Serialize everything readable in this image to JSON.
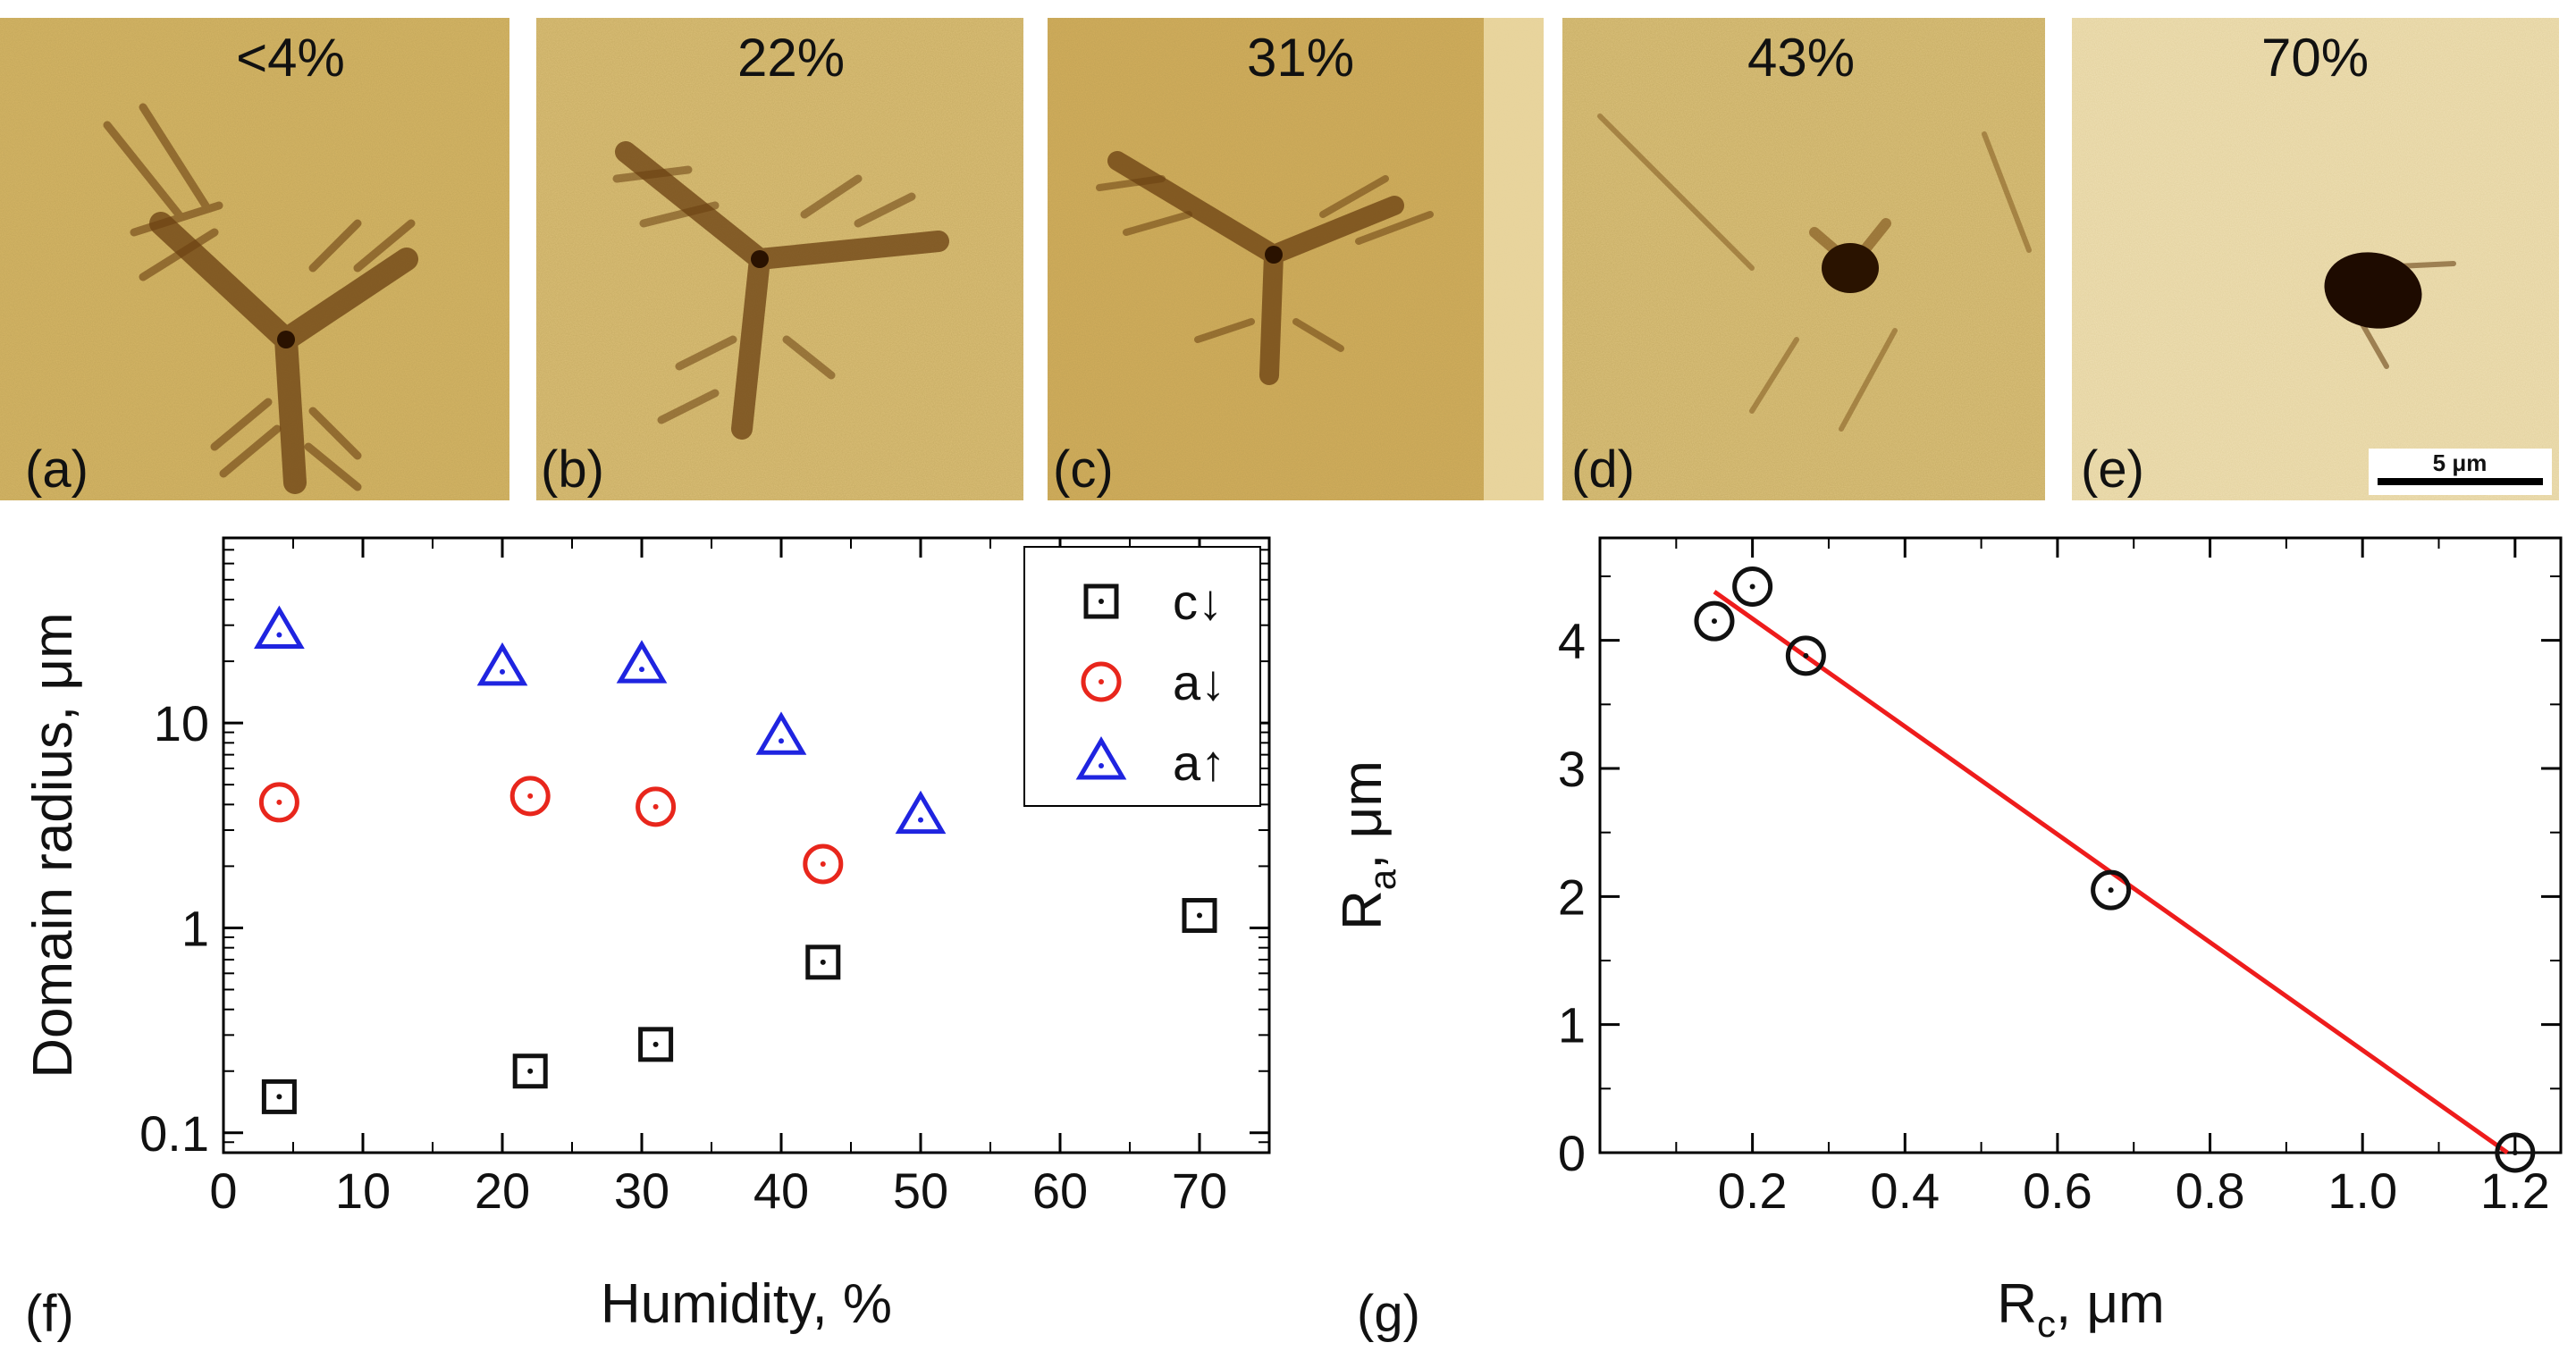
{
  "micrographs": [
    {
      "letter": "(a)",
      "humidity": "<4%",
      "feature": "feathered three-armed domain, large"
    },
    {
      "letter": "(b)",
      "humidity": "22%",
      "feature": "feathered three-armed domain"
    },
    {
      "letter": "(c)",
      "humidity": "31%",
      "feature": "feathered three-armed domain"
    },
    {
      "letter": "(d)",
      "humidity": "43%",
      "feature": "small domain with few lines"
    },
    {
      "letter": "(e)",
      "humidity": "70%",
      "feature": "dark elliptical domain"
    }
  ],
  "scale_bar": {
    "label": "5 μm"
  },
  "chart_data": [
    {
      "panel": "(f)",
      "type": "scatter",
      "xlabel": "Humidity, %",
      "ylabel": "Domain radius, μm",
      "yscale": "log",
      "xlim": [
        0,
        75
      ],
      "ylim": [
        0.08,
        80
      ],
      "xticks": [
        "0",
        "10",
        "20",
        "30",
        "40",
        "50",
        "60",
        "70"
      ],
      "yticks": [
        "0.1",
        "1",
        "10"
      ],
      "legend_position": "top-right",
      "series": [
        {
          "name": "c↓",
          "marker": "square",
          "color": "#111111",
          "x": [
            4,
            22,
            31,
            43,
            70
          ],
          "y": [
            0.15,
            0.2,
            0.27,
            0.68,
            1.15
          ]
        },
        {
          "name": "a↓",
          "marker": "circle",
          "color": "#e8261c",
          "x": [
            4,
            22,
            31,
            43
          ],
          "y": [
            4.1,
            4.4,
            3.9,
            2.05
          ]
        },
        {
          "name": "a↑",
          "marker": "triangle",
          "color": "#1f24e0",
          "x": [
            4,
            20,
            30,
            40,
            50
          ],
          "y": [
            28,
            18.5,
            19,
            8.5,
            3.5
          ]
        }
      ]
    },
    {
      "panel": "(g)",
      "type": "scatter",
      "xlabel_main": "R",
      "xlabel_sub": "c",
      "xlabel_unit": ", μm",
      "ylabel_main": "R",
      "ylabel_sub": "a",
      "ylabel_unit": ", μm",
      "xlim": [
        0,
        1.26
      ],
      "ylim": [
        0,
        4.8
      ],
      "xticks": [
        "0.2",
        "0.4",
        "0.6",
        "0.8",
        "1.0",
        "1.2"
      ],
      "yticks": [
        "0",
        "1",
        "2",
        "3",
        "4"
      ],
      "points": {
        "marker": "circle",
        "color": "#111111",
        "x": [
          0.15,
          0.2,
          0.27,
          0.67,
          1.2
        ],
        "y": [
          4.15,
          4.42,
          3.88,
          2.05,
          0.0
        ]
      },
      "fit_line": {
        "color": "#ee1c1c",
        "x": [
          0.15,
          1.19
        ],
        "y": [
          4.38,
          0.0
        ]
      }
    }
  ]
}
